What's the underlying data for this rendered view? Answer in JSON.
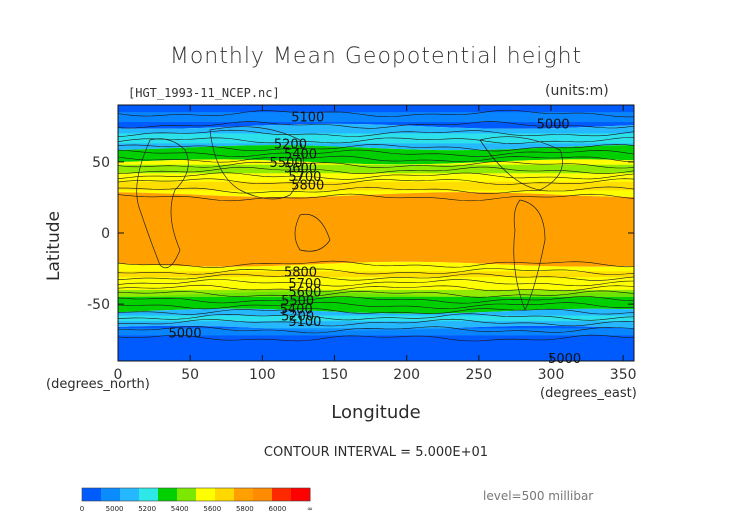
{
  "chart_data": {
    "type": "heatmap",
    "title": "Monthly Mean Geopotential height",
    "file_label": "[HGT_1993-11_NCEP.nc]",
    "units_label": "(units:m)",
    "xlabel": "Longitude",
    "ylabel": "Latitude",
    "x_units": "(degrees_east)",
    "y_units": "(degrees_north)",
    "xlim": [
      0,
      357.5
    ],
    "ylim": [
      -90,
      90
    ],
    "x_ticks": [
      0,
      50,
      100,
      150,
      200,
      250,
      300,
      350
    ],
    "y_ticks": [
      50,
      0,
      -50
    ],
    "contour_interval_text": "CONTOUR INTERVAL = 5.000E+01",
    "level_text": "level=500 millibar",
    "bands": [
      {
        "lat_from": 90,
        "lat_to": 75,
        "value": 5050
      },
      {
        "lat_from": 75,
        "lat_to": 60,
        "value": 5250
      },
      {
        "lat_from": 60,
        "lat_to": 50,
        "value": 5450
      },
      {
        "lat_from": 50,
        "lat_to": 40,
        "value": 5650
      },
      {
        "lat_from": 40,
        "lat_to": 27,
        "value": 5800
      },
      {
        "lat_from": 27,
        "lat_to": -22,
        "value": 5880
      },
      {
        "lat_from": -22,
        "lat_to": -33,
        "value": 5800
      },
      {
        "lat_from": -33,
        "lat_to": -43,
        "value": 5650
      },
      {
        "lat_from": -43,
        "lat_to": -55,
        "value": 5450
      },
      {
        "lat_from": -55,
        "lat_to": -67,
        "value": 5250
      },
      {
        "lat_from": -67,
        "lat_to": -90,
        "value": 5050
      }
    ],
    "contour_labels": [
      {
        "text": "5100",
        "lon": 120,
        "lat": 82
      },
      {
        "text": "5000",
        "lon": 290,
        "lat": 77
      },
      {
        "text": "5200",
        "lon": 108,
        "lat": 63
      },
      {
        "text": "5400",
        "lon": 115,
        "lat": 56
      },
      {
        "text": "5500",
        "lon": 105,
        "lat": 50
      },
      {
        "text": "5600",
        "lon": 115,
        "lat": 46
      },
      {
        "text": "5700",
        "lon": 118,
        "lat": 40
      },
      {
        "text": "5800",
        "lon": 120,
        "lat": 34
      },
      {
        "text": "5800",
        "lon": 115,
        "lat": -27
      },
      {
        "text": "5700",
        "lon": 118,
        "lat": -35
      },
      {
        "text": "5600",
        "lon": 118,
        "lat": -41
      },
      {
        "text": "5500",
        "lon": 113,
        "lat": -47
      },
      {
        "text": "5400",
        "lon": 112,
        "lat": -53
      },
      {
        "text": "5200",
        "lon": 113,
        "lat": -58
      },
      {
        "text": "5100",
        "lon": 118,
        "lat": -62
      },
      {
        "text": "5000",
        "lon": 35,
        "lat": -70
      },
      {
        "text": "5000",
        "lon": 298,
        "lat": -88
      }
    ],
    "colorbar": {
      "colors": [
        "#005bff",
        "#0a8cff",
        "#25b8ff",
        "#2ee7e7",
        "#00d000",
        "#7ce800",
        "#ffff00",
        "#ffd800",
        "#ffa000",
        "#ff8c00",
        "#ff2800",
        "#ff0000"
      ],
      "labels": [
        "0",
        "5000",
        "5200",
        "5400",
        "5600",
        "5800",
        "6000",
        "∞"
      ]
    },
    "band_colors": {
      "5050": "#005bff",
      "5250": "#25b8ff",
      "5450": "#00d000",
      "5650": "#ffff00",
      "5800": "#ffff00",
      "5880": "#ffa000"
    }
  }
}
